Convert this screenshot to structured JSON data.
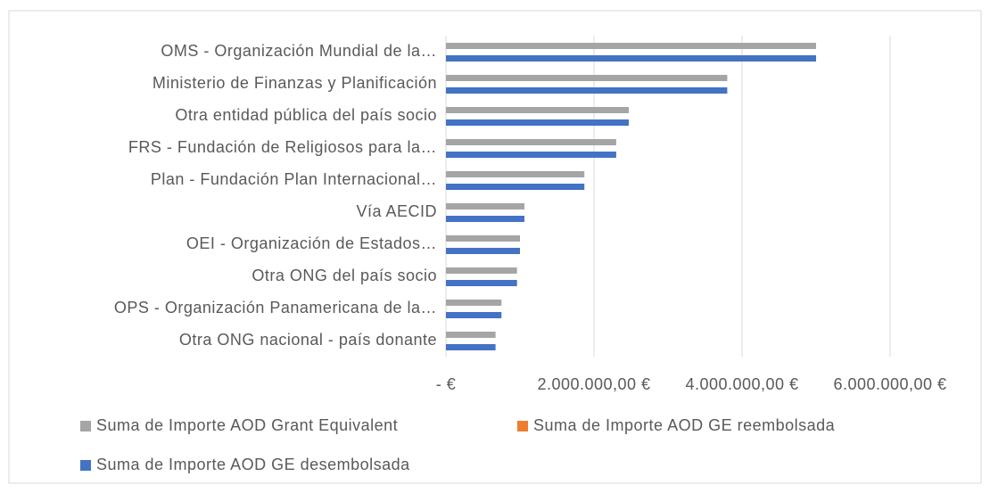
{
  "chart_data": {
    "type": "bar",
    "orientation": "horizontal",
    "categories": [
      "OMS - Organización Mundial de la…",
      "Ministerio de Finanzas y Planificación",
      "Otra entidad pública del país socio",
      "FRS - Fundación de Religiosos para la…",
      "Plan - Fundación Plan Internacional…",
      "Vía AECID",
      "OEI - Organización de Estados…",
      "Otra ONG del país socio",
      "OPS - Organización Panamericana de la…",
      "Otra ONG nacional - país donante"
    ],
    "series": [
      {
        "name": "Suma de Importe AOD Grant Equivalent",
        "color": "#a5a5a5",
        "values": [
          5000000,
          3800000,
          2470000,
          2300000,
          1870000,
          1060000,
          1000000,
          960000,
          750000,
          670000
        ]
      },
      {
        "name": "Suma de Importe AOD GE reembolsada",
        "color": "#ed7d31",
        "values": [
          0,
          0,
          0,
          0,
          0,
          0,
          0,
          0,
          0,
          0
        ]
      },
      {
        "name": "Suma de Importe AOD GE desembolsada",
        "color": "#4472c4",
        "values": [
          5000000,
          3800000,
          2470000,
          2300000,
          1870000,
          1060000,
          1000000,
          960000,
          750000,
          670000
        ]
      }
    ],
    "xlim": [
      0,
      6000000
    ],
    "xticks": [
      {
        "value": 0,
        "label": "-  €"
      },
      {
        "value": 2000000,
        "label": "2.000.000,00 €"
      },
      {
        "value": 4000000,
        "label": "4.000.000,00 €"
      },
      {
        "value": 6000000,
        "label": "6.000.000,00 €"
      }
    ],
    "grid": true
  }
}
